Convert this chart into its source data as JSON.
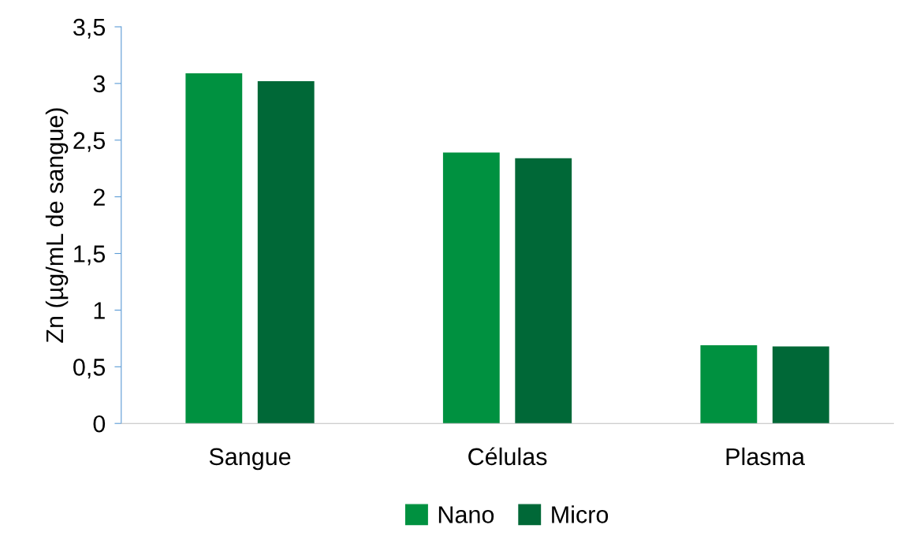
{
  "chart_data": {
    "type": "bar",
    "ylabel": "Zn (µg/mL de sangue)",
    "categories": [
      "Sangue",
      "Células",
      "Plasma"
    ],
    "series": [
      {
        "name": "Nano",
        "color": "#009140",
        "values": [
          3.09,
          2.39,
          0.69
        ]
      },
      {
        "name": "Micro",
        "color": "#006837",
        "values": [
          3.02,
          2.34,
          0.68
        ]
      }
    ],
    "ylim": [
      0,
      3.5
    ],
    "yticks": [
      0,
      {
        "value": 0.5,
        "label": "0,5"
      },
      1,
      {
        "value": 1.5,
        "label": "1,5"
      },
      2,
      {
        "value": 2.5,
        "label": "2,5"
      },
      3,
      {
        "value": 3.5,
        "label": "3,5"
      }
    ],
    "grid": false,
    "legend": "bottom"
  }
}
